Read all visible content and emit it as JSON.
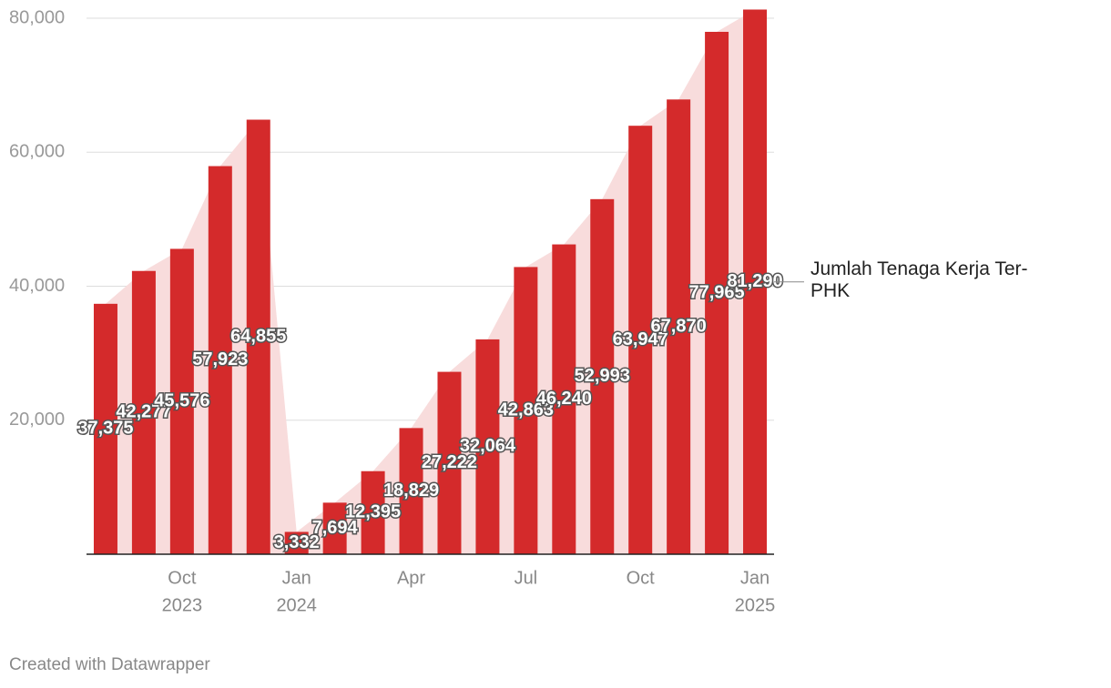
{
  "chart_data": {
    "type": "bar",
    "series_name": "Jumlah Tenaga Kerja Ter-PHK",
    "categories": [
      null,
      null,
      "Oct",
      null,
      null,
      "Jan",
      null,
      null,
      "Apr",
      null,
      null,
      "Jul",
      null,
      null,
      "Oct",
      null,
      null,
      "Jan"
    ],
    "category_years": [
      null,
      null,
      "2023",
      null,
      null,
      "2024",
      null,
      null,
      null,
      null,
      null,
      null,
      null,
      null,
      null,
      null,
      null,
      "2025"
    ],
    "values": [
      37375,
      42277,
      45576,
      57923,
      64855,
      3332,
      7694,
      12395,
      18829,
      27222,
      32064,
      42863,
      46240,
      52993,
      63947,
      67870,
      77965,
      81290
    ],
    "value_labels": [
      "37,375",
      "42,277",
      "45,576",
      "57,923",
      "64,855",
      "3,332",
      "7,694",
      "12,395",
      "18,829",
      "27,222",
      "32,064",
      "42,863",
      "46,240",
      "52,993",
      "63,947",
      "67,870",
      "77,965",
      "81,290"
    ],
    "color": "#d42a2b",
    "area_color": "#f8dcdc",
    "ylim": [
      0,
      80000
    ],
    "yticks": [
      {
        "value": 20000,
        "label": "20,000"
      },
      {
        "value": 40000,
        "label": "40,000"
      },
      {
        "value": 60000,
        "label": "60,000"
      },
      {
        "value": 80000,
        "label": "80,000"
      }
    ],
    "grid": true,
    "footer": "Created with Datawrapper"
  }
}
